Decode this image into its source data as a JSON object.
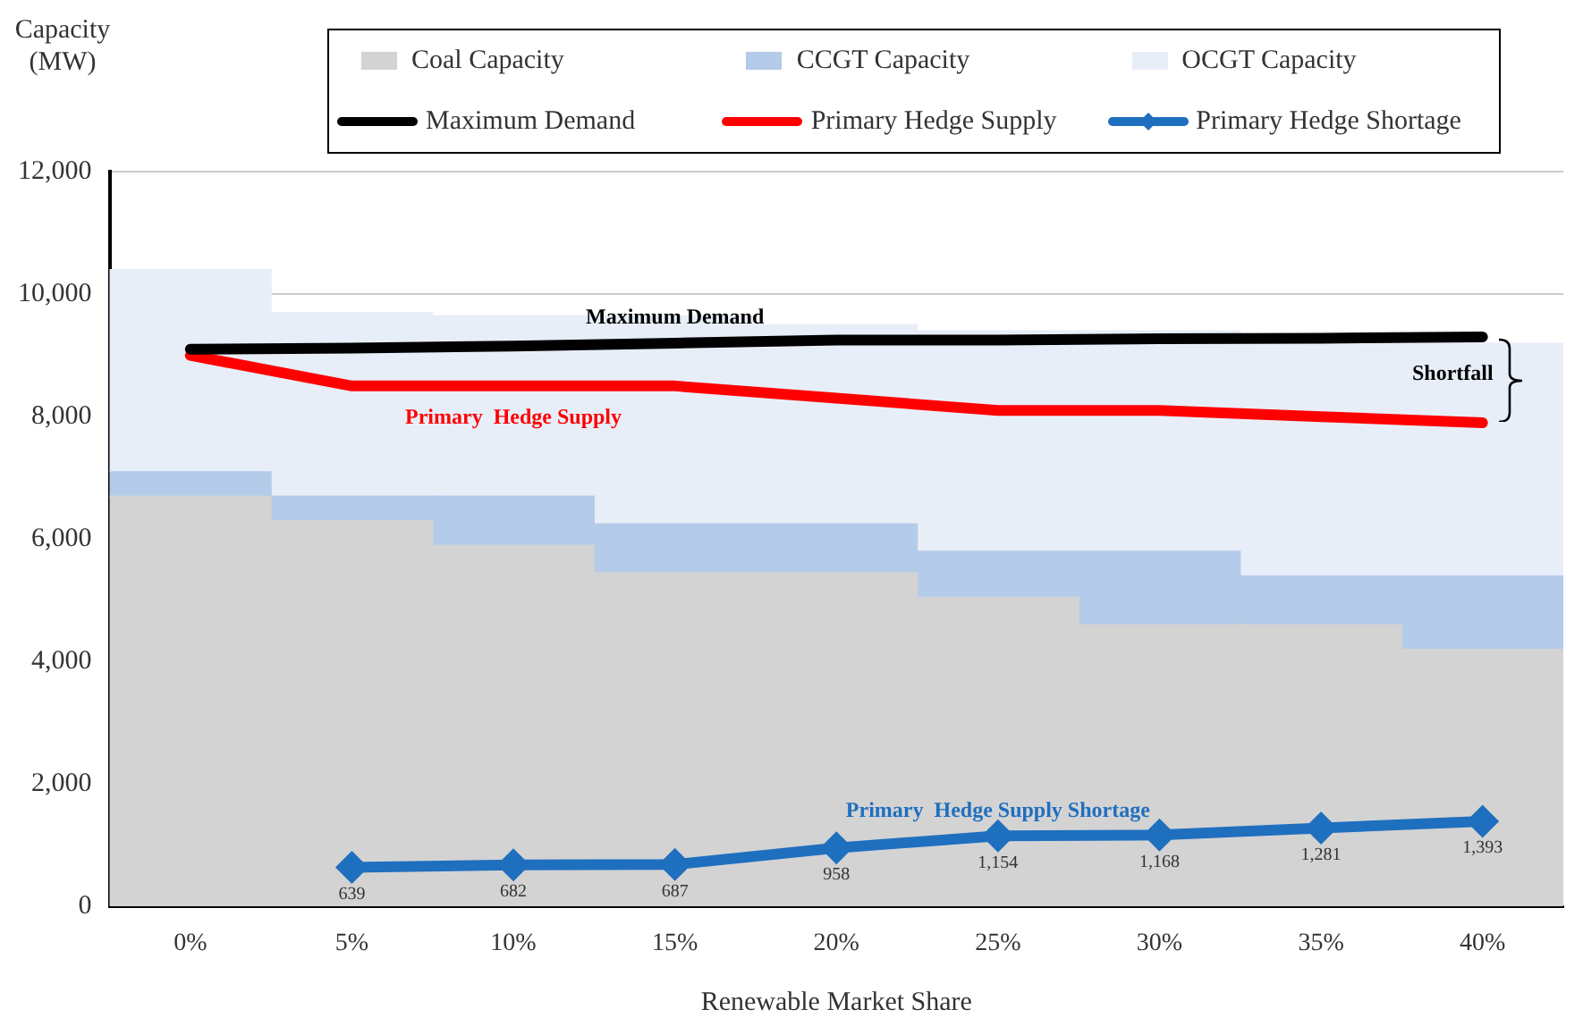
{
  "chart_data": {
    "type": "bar",
    "stacked": true,
    "categories": [
      "0%",
      "5%",
      "10%",
      "15%",
      "20%",
      "25%",
      "30%",
      "35%",
      "40%"
    ],
    "xlabel": "Renewable Market Share",
    "ylabel": "Capacity\n(MW)",
    "ylim": [
      0,
      12000
    ],
    "yticks": [
      0,
      {
        "value": 2000,
        "label": "2,000"
      },
      {
        "value": 4000,
        "label": "4,000"
      },
      {
        "value": 6000,
        "label": "6,000"
      },
      {
        "value": 8000,
        "label": "8,000"
      },
      {
        "value": 10000,
        "label": "10,000"
      },
      {
        "value": 12000,
        "label": "12,000"
      }
    ],
    "grid": "y",
    "legend": "top",
    "series": [
      {
        "name": "Coal Capacity",
        "color": "#d3d3d3",
        "values": [
          6700,
          6300,
          5900,
          5450,
          5450,
          5050,
          4600,
          4600,
          4200
        ]
      },
      {
        "name": "CCGT Capacity",
        "color": "#b4cbea",
        "values": [
          400,
          400,
          800,
          800,
          800,
          750,
          1200,
          800,
          1200
        ]
      },
      {
        "name": "OCGT Capacity",
        "color": "#e8eef8",
        "values": [
          3300,
          3000,
          2950,
          3400,
          3250,
          3600,
          3600,
          3900,
          3800
        ]
      },
      {
        "name": "Maximum Demand",
        "type": "line",
        "color": "#000000",
        "values": [
          9100,
          9120,
          9150,
          9200,
          9250,
          9250,
          9270,
          9280,
          9300
        ]
      },
      {
        "name": "Primary Hedge Supply",
        "type": "line",
        "color": "#ff0000",
        "values": [
          9000,
          8500,
          8500,
          8500,
          8300,
          8100,
          8100,
          8000,
          7900
        ]
      },
      {
        "name": "Primary Hedge Shortage",
        "type": "line",
        "color": "#1f6fbf",
        "marker": "diamond",
        "values": [
          null,
          639,
          682,
          687,
          958,
          1154,
          1168,
          1281,
          1393
        ],
        "value_labels": [
          null,
          "639",
          "682",
          "687",
          "958",
          "1,154",
          "1,168",
          "1,281",
          "1,393"
        ]
      }
    ],
    "annotations": [
      {
        "text": "Maximum Demand",
        "x": "15%",
        "y": 9200
      },
      {
        "text": "Primary  Hedge Supply",
        "x": "10%",
        "y": 8500
      },
      {
        "text": "Primary  Hedge Supply Shortage",
        "x": "25%",
        "y": 1154
      },
      "Shortfall"
    ]
  }
}
